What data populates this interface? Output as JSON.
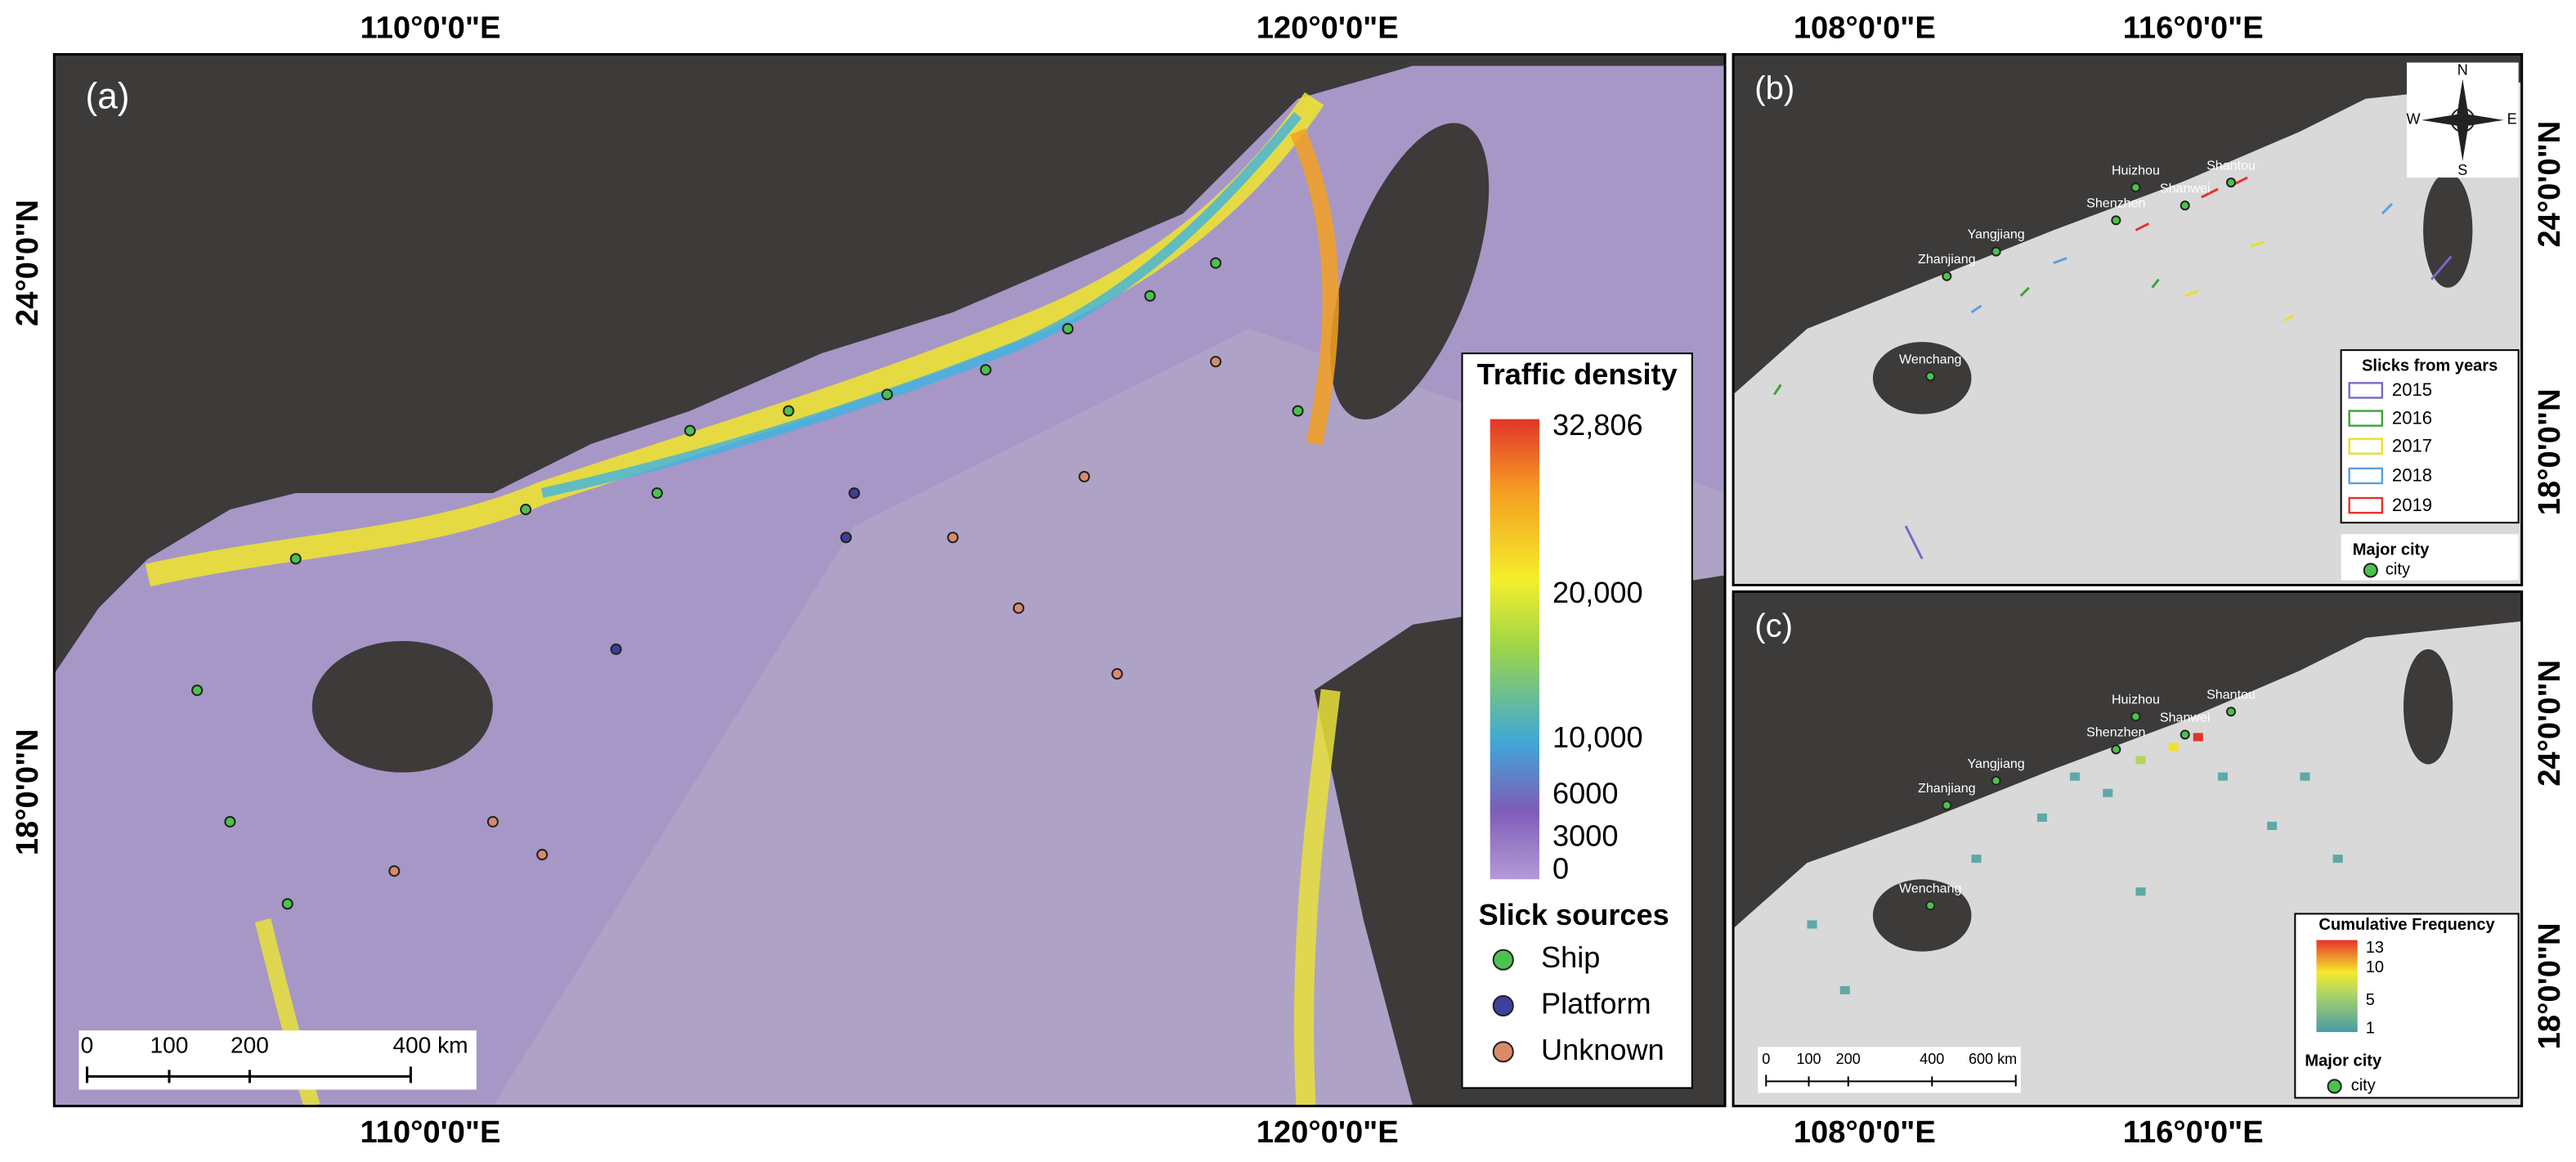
{
  "panel_a": {
    "label": "(a)",
    "lon_labels": [
      "110°0'0\"E",
      "120°0'0\"E"
    ],
    "lat_labels": [
      "24°0'0\"N",
      "18°0'0\"N"
    ],
    "legend": {
      "title": "Traffic density",
      "ticks": [
        "32,806",
        "20,000",
        "10,000",
        "6000",
        "3000",
        "0"
      ],
      "sources_title": "Slick sources",
      "sources": [
        "Ship",
        "Platform",
        "Unknown"
      ]
    },
    "scale_bar": [
      "0",
      "100",
      "200",
      "400 km"
    ]
  },
  "panel_b": {
    "label": "(b)",
    "lon_labels": [
      "108°0'0\"E",
      "116°0'0\"E"
    ],
    "lat_labels": [
      "24°0'0\"N",
      "18°0'0\"N"
    ],
    "cities": [
      "Huizhou",
      "Shantou",
      "Shenzhen",
      "Shanwei",
      "Yangjiang",
      "Zhanjiang",
      "Wenchang"
    ],
    "legend": {
      "title": "Slicks from years",
      "years": [
        "2015",
        "2016",
        "2017",
        "2018",
        "2019"
      ]
    },
    "city_legend": {
      "title": "Major city",
      "item": "city"
    },
    "compass": [
      "N",
      "S",
      "E",
      "W"
    ]
  },
  "panel_c": {
    "label": "(c)",
    "lon_labels": [
      "108°0'0\"E",
      "116°0'0\"E"
    ],
    "lat_labels": [
      "24°0'0\"N",
      "18°0'0\"N"
    ],
    "cities": [
      "Huizhou",
      "Shantou",
      "Shenzhen",
      "Shanwei",
      "Yangjiang",
      "Zhanjiang",
      "Wenchang"
    ],
    "legend": {
      "title": "Cumulative Frequency",
      "ticks": [
        "13",
        "10",
        "5",
        "1"
      ]
    },
    "city_legend": {
      "title": "Major city",
      "item": "city"
    },
    "scale_bar": [
      "0",
      "100",
      "200",
      "400",
      "600 km"
    ]
  }
}
